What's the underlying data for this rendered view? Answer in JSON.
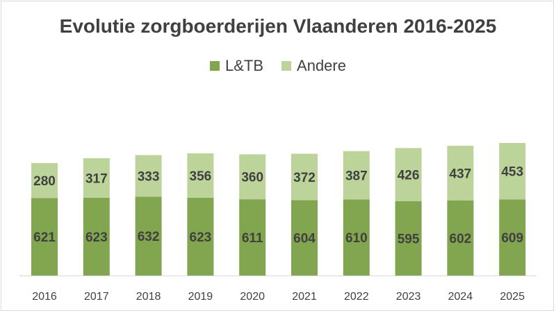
{
  "chart_data": {
    "type": "bar",
    "stacked": true,
    "title": "Evolutie zorgboerderijen Vlaanderen 2016-2025",
    "xlabel": "",
    "ylabel": "",
    "legend_position": "top",
    "categories": [
      "2016",
      "2017",
      "2018",
      "2019",
      "2020",
      "2021",
      "2022",
      "2023",
      "2024",
      "2025"
    ],
    "series": [
      {
        "name": "L&TB",
        "color": "#82a550",
        "values": [
          621,
          623,
          632,
          623,
          611,
          604,
          610,
          595,
          602,
          609
        ]
      },
      {
        "name": "Andere",
        "color": "#bcd49a",
        "values": [
          280,
          317,
          333,
          356,
          360,
          372,
          387,
          426,
          437,
          453
        ]
      }
    ],
    "gridlines": false
  }
}
